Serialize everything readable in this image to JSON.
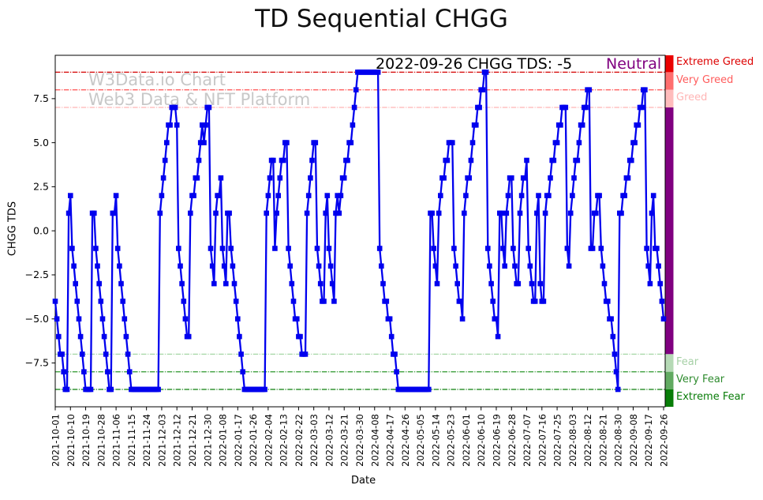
{
  "chart_data": {
    "type": "line",
    "title": "TD Sequential CHGG",
    "annotation": {
      "text": "2022-09-26 CHGG TDS: -5",
      "sentiment": "Neutral",
      "sentiment_color": "#800080"
    },
    "watermark": {
      "line1": "W3Data.io Chart",
      "line2": "Web3 Data & NFT Platform"
    },
    "xlabel": "Date",
    "ylabel": "CHGG TDS",
    "line_color": "#0000ee",
    "x_tick_labels": [
      "2021-10-01",
      "2021-10-10",
      "2021-10-19",
      "2021-10-28",
      "2021-11-06",
      "2021-11-15",
      "2021-11-24",
      "2021-12-03",
      "2021-12-12",
      "2021-12-21",
      "2021-12-30",
      "2022-01-08",
      "2022-01-17",
      "2022-01-26",
      "2022-02-04",
      "2022-02-13",
      "2022-02-22",
      "2022-03-03",
      "2022-03-12",
      "2022-03-21",
      "2022-03-30",
      "2022-04-08",
      "2022-04-17",
      "2022-04-26",
      "2022-05-05",
      "2022-05-14",
      "2022-05-23",
      "2022-06-01",
      "2022-06-10",
      "2022-06-19",
      "2022-06-28",
      "2022-07-07",
      "2022-07-16",
      "2022-07-25",
      "2022-08-03",
      "2022-08-12",
      "2022-08-21",
      "2022-08-30",
      "2022-09-08",
      "2022-09-17",
      "2022-09-26"
    ],
    "x_tick_interval_days": 9,
    "y_ticks": [
      7.5,
      5.0,
      2.5,
      0.0,
      -2.5,
      -5.0,
      -7.5
    ],
    "y_tick_labels": [
      "7.5",
      "5.0",
      "2.5",
      "0.0",
      "−2.5",
      "−5.0",
      "−7.5"
    ],
    "ylim": [
      -10,
      10
    ],
    "grid": false,
    "series": {
      "name": "CHGG TDS",
      "start_date": "2021-10-01",
      "end_date": "2022-09-26",
      "last_value": -5,
      "values": [
        -4,
        -5,
        -6,
        -7,
        -7,
        -8,
        -9,
        -9,
        1,
        2,
        -1,
        -2,
        -3,
        -4,
        -5,
        -6,
        -7,
        -8,
        -9,
        -9,
        -9,
        -9,
        1,
        1,
        -1,
        -2,
        -3,
        -4,
        -5,
        -6,
        -7,
        -8,
        -9,
        -9,
        1,
        1,
        2,
        -1,
        -2,
        -3,
        -4,
        -5,
        -6,
        -7,
        -8,
        -9,
        -9,
        -9,
        -9,
        -9,
        -9,
        -9,
        -9,
        -9,
        -9,
        -9,
        -9,
        -9,
        -9,
        -9,
        -9,
        -9,
        1,
        2,
        3,
        4,
        5,
        6,
        6,
        7,
        7,
        7,
        6,
        -1,
        -2,
        -3,
        -4,
        -5,
        -6,
        -6,
        1,
        2,
        2,
        3,
        3,
        4,
        5,
        6,
        5,
        6,
        7,
        7,
        -1,
        -2,
        -3,
        1,
        2,
        2,
        3,
        -1,
        -2,
        -3,
        1,
        1,
        -1,
        -2,
        -3,
        -4,
        -5,
        -6,
        -7,
        -8,
        -9,
        -9,
        -9,
        -9,
        -9,
        -9,
        -9,
        -9,
        -9,
        -9,
        -9,
        -9,
        -9,
        1,
        2,
        3,
        4,
        4,
        -1,
        1,
        2,
        3,
        4,
        4,
        5,
        5,
        -1,
        -2,
        -3,
        -4,
        -5,
        -5,
        -6,
        -6,
        -7,
        -7,
        -7,
        1,
        2,
        3,
        4,
        5,
        5,
        -1,
        -2,
        -3,
        -4,
        -4,
        1,
        2,
        -1,
        -2,
        -3,
        -4,
        1,
        2,
        1,
        2,
        3,
        3,
        4,
        4,
        5,
        5,
        6,
        7,
        8,
        9,
        9,
        9,
        9,
        9,
        9,
        9,
        9,
        9,
        9,
        9,
        9,
        9,
        -1,
        -2,
        -3,
        -4,
        -4,
        -5,
        -5,
        -6,
        -7,
        -7,
        -8,
        -9,
        -9,
        -9,
        -9,
        -9,
        -9,
        -9,
        -9,
        -9,
        -9,
        -9,
        -9,
        -9,
        -9,
        -9,
        -9,
        -9,
        -9,
        -9,
        1,
        1,
        -1,
        -2,
        -3,
        1,
        2,
        3,
        3,
        4,
        4,
        5,
        5,
        5,
        -1,
        -2,
        -3,
        -4,
        -4,
        -5,
        1,
        2,
        3,
        3,
        4,
        5,
        6,
        6,
        7,
        7,
        8,
        8,
        9,
        9,
        -1,
        -2,
        -3,
        -4,
        -5,
        -5,
        -6,
        1,
        1,
        -1,
        -2,
        1,
        2,
        3,
        3,
        -1,
        -2,
        -3,
        -3,
        1,
        2,
        3,
        3,
        4,
        -1,
        -2,
        -3,
        -4,
        -4,
        1,
        2,
        -3,
        -4,
        -4,
        1,
        2,
        2,
        3,
        4,
        4,
        5,
        5,
        6,
        6,
        7,
        7,
        7,
        -1,
        -2,
        1,
        2,
        3,
        4,
        4,
        5,
        6,
        6,
        7,
        7,
        8,
        8,
        -1,
        -1,
        1,
        1,
        2,
        2,
        -1,
        -2,
        -3,
        -4,
        -4,
        -5,
        -5,
        -6,
        -7,
        -8,
        -9,
        1,
        1,
        2,
        2,
        3,
        3,
        4,
        4,
        5,
        5,
        6,
        6,
        7,
        7,
        8,
        8,
        -1,
        -2,
        -3,
        1,
        2,
        -1,
        -1,
        -2,
        -3,
        -4,
        -5
      ]
    },
    "thresholds": [
      {
        "value": 9,
        "label": "Extreme Greed",
        "line_color": "#d40000",
        "label_color": "#dd0000"
      },
      {
        "value": 8,
        "label": "Very Greed",
        "line_color": "#ff5050",
        "label_color": "#ff5c5c"
      },
      {
        "value": 7,
        "label": "Greed",
        "line_color": "#ffb5b5",
        "label_color": "#ffb5b5"
      },
      {
        "value": -7,
        "label": "Fear",
        "line_color": "#a6d7a6",
        "label_color": "#a6d0a6"
      },
      {
        "value": -8,
        "label": "Very Fear",
        "line_color": "#3fa03f",
        "label_color": "#2e8b2e"
      },
      {
        "value": -9,
        "label": "Extreme Fear",
        "line_color": "#0b7d0b",
        "label_color": "#0a7d0a"
      }
    ],
    "sentiment_bands": [
      {
        "label": "Extreme Greed",
        "from": 10,
        "to": 9,
        "color": "#ea0000"
      },
      {
        "label": "Very Greed",
        "from": 9,
        "to": 8,
        "color": "#ff6e6e"
      },
      {
        "label": "Greed",
        "from": 8,
        "to": 7,
        "color": "#ffbcbc"
      },
      {
        "label": "Neutral",
        "from": 7,
        "to": -7,
        "color": "#800080"
      },
      {
        "label": "Fear",
        "from": -7,
        "to": -8,
        "color": "#b5d9b5"
      },
      {
        "label": "Very Fear",
        "from": -8,
        "to": -9,
        "color": "#61aa61"
      },
      {
        "label": "Extreme Fear",
        "from": -9,
        "to": -10,
        "color": "#087d08"
      }
    ]
  }
}
